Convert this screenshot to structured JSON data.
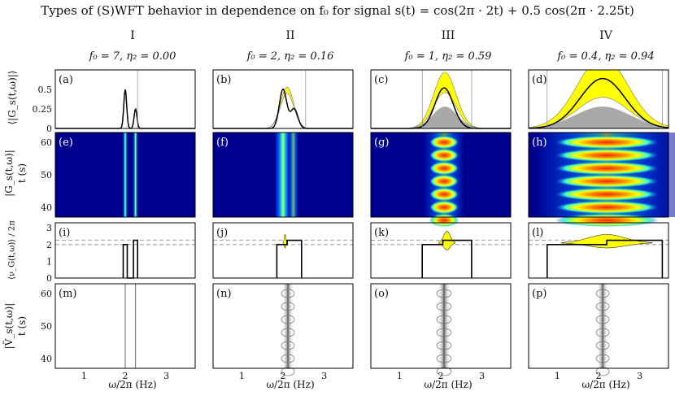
{
  "title": "Types of (S)WFT behavior in dependence on f₀ for signal s(t) = cos(2π · 2t) + 0.5 cos(2π · 2.25t)",
  "columns": [
    {
      "header": "I",
      "params": "f₀ = 7, η₂ = 0.00"
    },
    {
      "header": "II",
      "params": "f₀ = 2, η₂ = 0.16"
    },
    {
      "header": "III",
      "params": "f₀ = 1, η₂ = 0.59"
    },
    {
      "header": "IV",
      "params": "f₀ = 0.4, η₂ = 0.94"
    }
  ],
  "row_labels": {
    "row1": "⟨|G_s(t,ω)|⟩",
    "row2": "|G_s(t,ω)|",
    "row2_unit": "t (s)",
    "row3": "⟨ν_G(t,ω)⟩ / 2π",
    "row4": "|Ṽ_s(t,ω)|",
    "row4_unit": "t (s)"
  },
  "panel_letters": [
    "(a)",
    "(b)",
    "(c)",
    "(d)",
    "(e)",
    "(f)",
    "(g)",
    "(h)",
    "(i)",
    "(j)",
    "(k)",
    "(l)",
    "(m)",
    "(n)",
    "(o)",
    "(p)"
  ],
  "x_axis": {
    "label": "ω/2π (Hz)",
    "ticks": [
      "1",
      "2",
      "3"
    ],
    "range": [
      0.3,
      3.7
    ]
  },
  "row1_y_ticks": [
    "0.5",
    "0.25",
    "0"
  ],
  "row2_y_ticks": [
    "60",
    "50",
    "40"
  ],
  "row3_y_ticks": [
    "3",
    "2",
    "1",
    "0"
  ],
  "row4_y_ticks": [
    "60",
    "50",
    "40"
  ],
  "colors": {
    "heatmap_bg": "#00008f",
    "yellow": "#ffff00",
    "gray": "#9a9a9a"
  },
  "chart_data": {
    "type": "line",
    "signal_components_hz": [
      2,
      2.25
    ],
    "signal_amplitudes": [
      1,
      0.5
    ],
    "f0": [
      7,
      2,
      1,
      0.4
    ],
    "eta2": [
      0.0,
      0.16,
      0.59,
      0.94
    ],
    "xlim": [
      0.3,
      3.7
    ],
    "row1_ylim": [
      0,
      0.75
    ],
    "row2_ylim": [
      37,
      63
    ],
    "row3_ylim": [
      0,
      3.3
    ],
    "row3_dashed_levels": [
      2,
      2.25
    ],
    "row4_ylim": [
      37,
      63
    ]
  }
}
